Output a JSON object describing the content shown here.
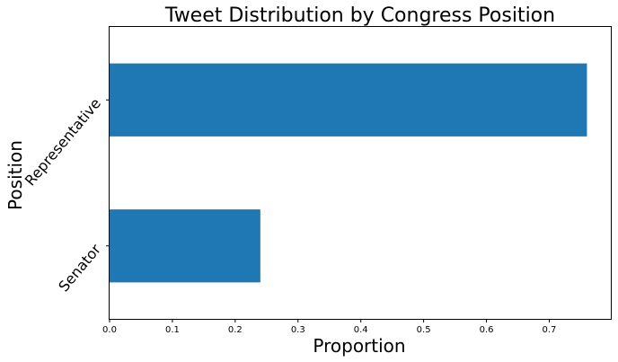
{
  "chart_data": {
    "type": "bar",
    "orientation": "horizontal",
    "title": "Tweet Distribution by Congress Position",
    "xlabel": "Proportion",
    "ylabel": "Position",
    "categories": [
      "Representative",
      "Senator"
    ],
    "values": [
      0.76,
      0.24
    ],
    "xlim": [
      0,
      0.798
    ],
    "xticks": [
      "0.0",
      "0.1",
      "0.2",
      "0.3",
      "0.4",
      "0.5",
      "0.6",
      "0.7"
    ],
    "grid": false,
    "legend": "none",
    "bar_color": "#1f77b4"
  }
}
